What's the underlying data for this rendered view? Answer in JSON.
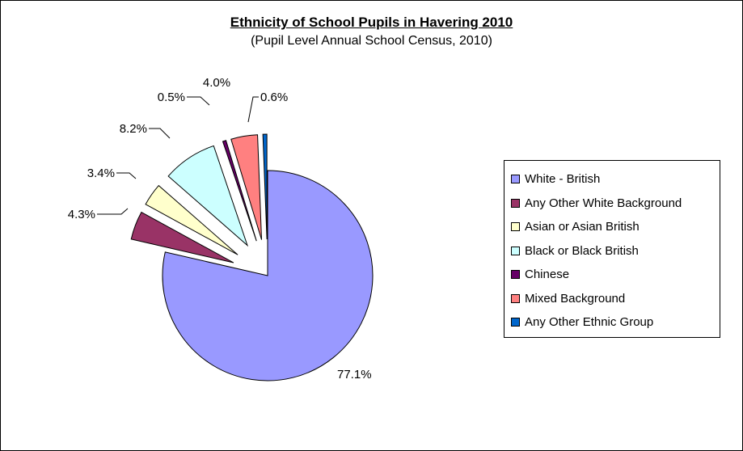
{
  "chart_data": {
    "type": "pie",
    "title": "Ethnicity of School Pupils in Havering 2010",
    "subtitle": "(Pupil Level Annual School Census, 2010)",
    "legend_position": "right",
    "slices": [
      {
        "name": "White - British",
        "value": 77.1,
        "label": "77.1%",
        "color": "#9999ff"
      },
      {
        "name": "Any Other White Background",
        "value": 4.3,
        "label": "4.3%",
        "color": "#993366"
      },
      {
        "name": "Asian or Asian British",
        "value": 3.4,
        "label": "3.4%",
        "color": "#ffffcc"
      },
      {
        "name": "Black or Black British",
        "value": 8.2,
        "label": "8.2%",
        "color": "#ccffff"
      },
      {
        "name": "Chinese",
        "value": 0.5,
        "label": "0.5%",
        "color": "#660066"
      },
      {
        "name": "Mixed Background",
        "value": 4.0,
        "label": "4.0%",
        "color": "#ff8080"
      },
      {
        "name": "Any Other Ethnic Group",
        "value": 0.6,
        "label": "0.6%",
        "color": "#0066cc"
      }
    ]
  }
}
